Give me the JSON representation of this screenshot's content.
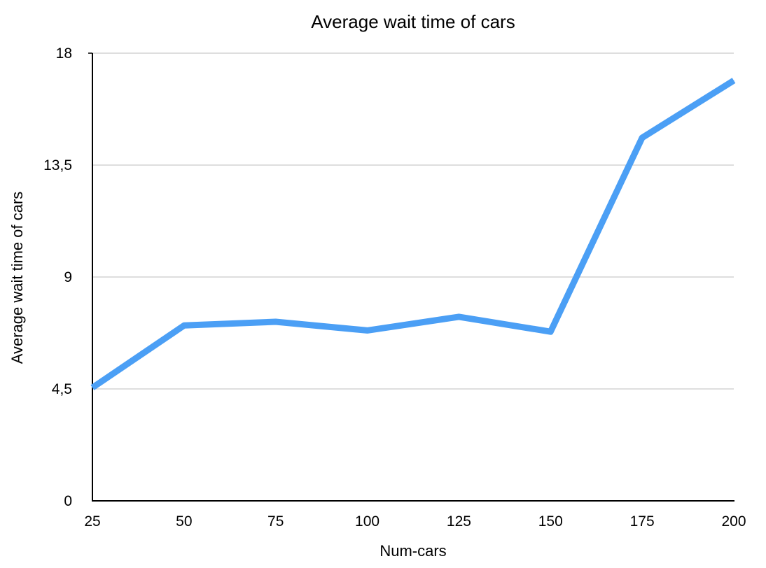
{
  "chart_data": {
    "type": "line",
    "title": "Average wait time of cars",
    "xlabel": "Num-cars",
    "ylabel": "Average wait time of cars",
    "x": [
      25,
      50,
      75,
      100,
      125,
      150,
      175,
      200
    ],
    "x_tick_labels": [
      "25",
      "50",
      "75",
      "100",
      "125",
      "150",
      "175",
      "200"
    ],
    "y_ticks": [
      0,
      4.5,
      9,
      13.5,
      18
    ],
    "y_tick_labels": [
      "0",
      "4,5",
      "9",
      "13,5",
      "18"
    ],
    "ylim": [
      0,
      18
    ],
    "xlim": [
      25,
      200
    ],
    "grid": true,
    "legend": "none",
    "series": [
      {
        "values": [
          4.55,
          7.05,
          7.2,
          6.85,
          7.4,
          6.8,
          14.6,
          16.9
        ],
        "color": "#4b9ff5"
      }
    ]
  }
}
